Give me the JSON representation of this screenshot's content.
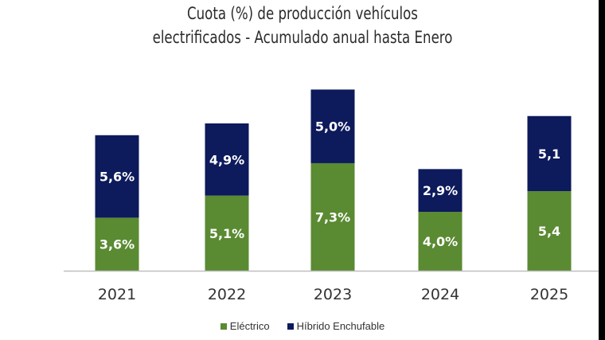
{
  "chart_data": {
    "type": "bar",
    "stacked": true,
    "title_lines": [
      "Cuota (%) de producción vehículos",
      "electrificados - Acumulado anual hasta  Enero"
    ],
    "categories": [
      "2021",
      "2022",
      "2023",
      "2024",
      "2025"
    ],
    "series": [
      {
        "name": "Eléctrico",
        "color": "#5a8a32",
        "values": [
          3.6,
          5.1,
          7.3,
          4.0,
          5.4
        ],
        "labels": [
          "3,6%",
          "5,1%",
          "7,3%",
          "4,0%",
          "5,4"
        ]
      },
      {
        "name": "Híbrido Enchufable",
        "color": "#0d1a5c",
        "values": [
          5.6,
          4.9,
          5.0,
          2.9,
          5.1
        ],
        "labels": [
          "5,6%",
          "4,9%",
          "5,0%",
          "2,9%",
          "5,1"
        ]
      }
    ],
    "xlabel": "",
    "ylabel": "",
    "ylim": [
      0,
      13
    ],
    "grid": false,
    "legend": "bottom"
  }
}
